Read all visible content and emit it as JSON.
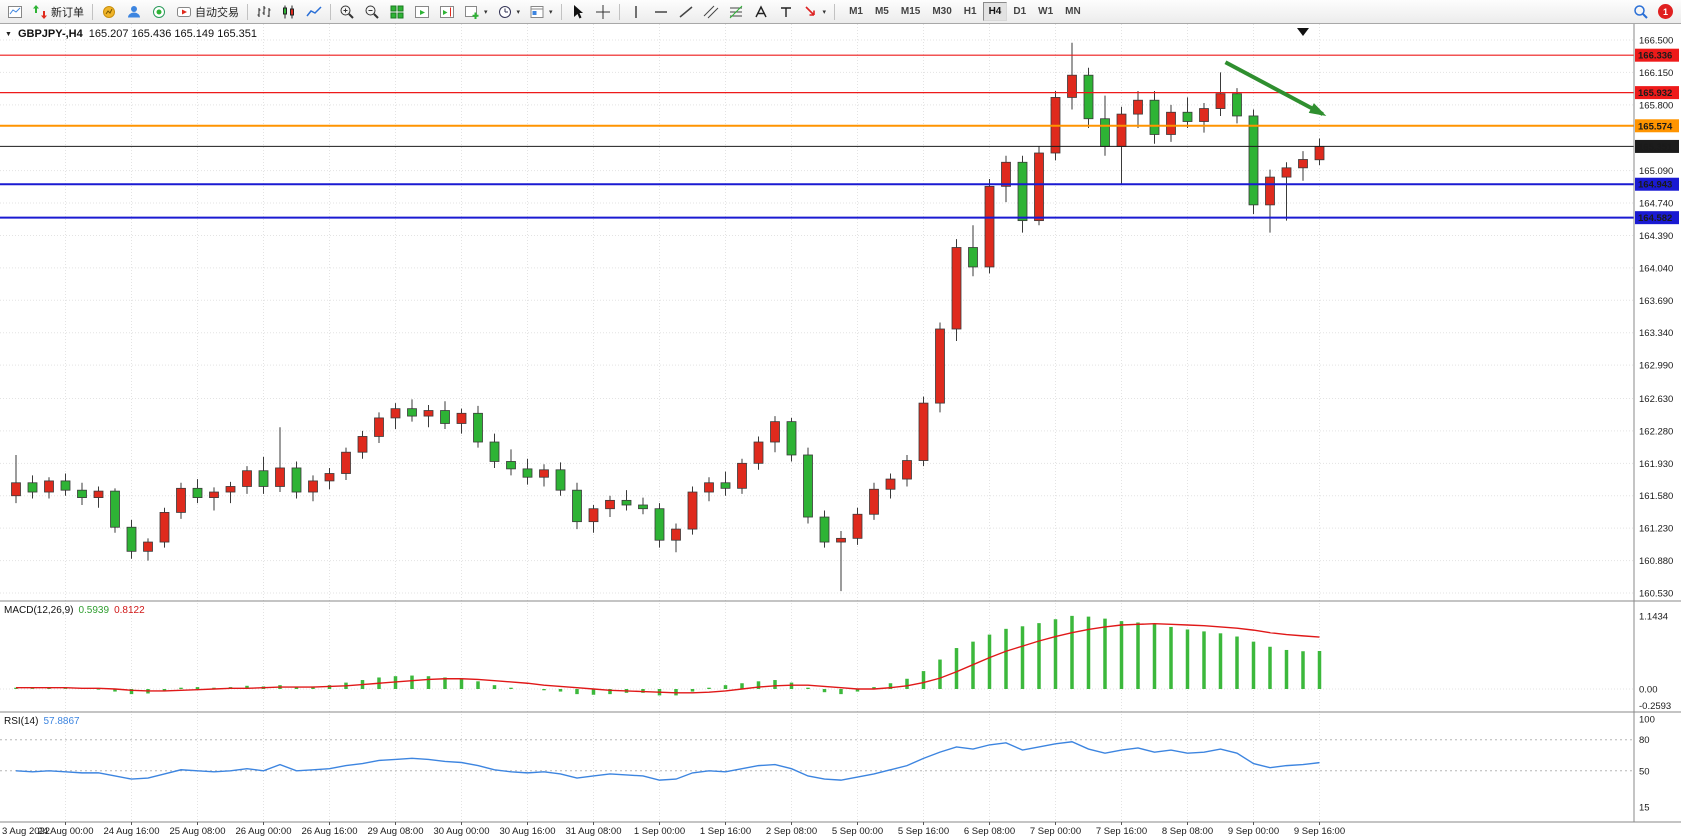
{
  "icons": {
    "collapse_triangle": "▼",
    "caret": "▾"
  },
  "toolbar": {
    "new_order_label": "新订单",
    "autotrading_label": "自动交易",
    "timeframes": [
      "M1",
      "M5",
      "M15",
      "M30",
      "H1",
      "H4",
      "D1",
      "W1",
      "MN"
    ],
    "active_timeframe": "H4",
    "notification_count": "1"
  },
  "chart": {
    "title_symbol": "GBPJPY-,H4",
    "title_ohlc": "165.207 165.436 165.149 165.351",
    "macd_name": "MACD(12,26,9)",
    "macd_value_main": "0.5939",
    "macd_value_signal": "0.8122",
    "rsi_name": "RSI(14)",
    "rsi_value": "57.8867"
  },
  "theme": {
    "grid": "#e3e3e3",
    "axis_text": "#1a1a1a",
    "panel_border": "#8a8a8a"
  },
  "chart_data": {
    "type": "candlestick",
    "symbol": "GBPJPY-",
    "timeframe": "H4",
    "price_convention": "red=bullish, green=bearish",
    "ylim": [
      160.44,
      166.67
    ],
    "colors": {
      "bull": "#df2a1d",
      "bear": "#2eb335",
      "wick": "#3a3a3a"
    },
    "candles": [
      [
        161.58,
        162.02,
        161.5,
        161.72
      ],
      [
        161.72,
        161.8,
        161.55,
        161.62
      ],
      [
        161.62,
        161.78,
        161.55,
        161.74
      ],
      [
        161.74,
        161.82,
        161.58,
        161.64
      ],
      [
        161.64,
        161.72,
        161.48,
        161.56
      ],
      [
        161.56,
        161.68,
        161.45,
        161.63
      ],
      [
        161.63,
        161.66,
        161.18,
        161.24
      ],
      [
        161.24,
        161.32,
        160.9,
        160.98
      ],
      [
        160.98,
        161.12,
        160.88,
        161.08
      ],
      [
        161.08,
        161.45,
        161.02,
        161.4
      ],
      [
        161.4,
        161.72,
        161.33,
        161.66
      ],
      [
        161.66,
        161.76,
        161.5,
        161.56
      ],
      [
        161.56,
        161.67,
        161.42,
        161.62
      ],
      [
        161.62,
        161.73,
        161.5,
        161.68
      ],
      [
        161.68,
        161.9,
        161.6,
        161.85
      ],
      [
        161.85,
        162.0,
        161.6,
        161.68
      ],
      [
        161.68,
        162.32,
        161.62,
        161.88
      ],
      [
        161.88,
        161.95,
        161.55,
        161.62
      ],
      [
        161.62,
        161.8,
        161.52,
        161.74
      ],
      [
        161.74,
        161.88,
        161.65,
        161.82
      ],
      [
        161.82,
        162.1,
        161.75,
        162.05
      ],
      [
        162.05,
        162.28,
        161.98,
        162.22
      ],
      [
        162.22,
        162.48,
        162.15,
        162.42
      ],
      [
        162.42,
        162.58,
        162.3,
        162.52
      ],
      [
        162.52,
        162.62,
        162.38,
        162.44
      ],
      [
        162.44,
        162.56,
        162.32,
        162.5
      ],
      [
        162.5,
        162.6,
        162.3,
        162.36
      ],
      [
        162.36,
        162.52,
        162.25,
        162.47
      ],
      [
        162.47,
        162.55,
        162.1,
        162.16
      ],
      [
        162.16,
        162.25,
        161.88,
        161.95
      ],
      [
        161.95,
        162.08,
        161.8,
        161.87
      ],
      [
        161.87,
        161.98,
        161.7,
        161.78
      ],
      [
        161.78,
        161.92,
        161.68,
        161.86
      ],
      [
        161.86,
        161.94,
        161.58,
        161.64
      ],
      [
        161.64,
        161.72,
        161.22,
        161.3
      ],
      [
        161.3,
        161.48,
        161.18,
        161.44
      ],
      [
        161.44,
        161.58,
        161.35,
        161.53
      ],
      [
        161.53,
        161.64,
        161.42,
        161.48
      ],
      [
        161.48,
        161.56,
        161.38,
        161.44
      ],
      [
        161.44,
        161.5,
        161.02,
        161.1
      ],
      [
        161.1,
        161.28,
        160.97,
        161.22
      ],
      [
        161.22,
        161.68,
        161.16,
        161.62
      ],
      [
        161.62,
        161.78,
        161.52,
        161.72
      ],
      [
        161.72,
        161.84,
        161.58,
        161.66
      ],
      [
        161.66,
        161.98,
        161.6,
        161.93
      ],
      [
        161.93,
        162.22,
        161.86,
        162.16
      ],
      [
        162.16,
        162.44,
        162.05,
        162.38
      ],
      [
        162.38,
        162.42,
        161.95,
        162.02
      ],
      [
        162.02,
        162.1,
        161.28,
        161.35
      ],
      [
        161.35,
        161.42,
        161.02,
        161.08
      ],
      [
        161.08,
        161.2,
        160.55,
        161.12
      ],
      [
        161.12,
        161.45,
        161.05,
        161.38
      ],
      [
        161.38,
        161.72,
        161.32,
        161.65
      ],
      [
        161.65,
        161.82,
        161.55,
        161.76
      ],
      [
        161.76,
        162.02,
        161.68,
        161.96
      ],
      [
        161.96,
        162.65,
        161.9,
        162.58
      ],
      [
        162.58,
        163.45,
        162.48,
        163.38
      ],
      [
        163.38,
        164.35,
        163.25,
        164.26
      ],
      [
        164.26,
        164.5,
        163.95,
        164.05
      ],
      [
        164.05,
        165.0,
        163.98,
        164.92
      ],
      [
        164.92,
        165.25,
        164.75,
        165.18
      ],
      [
        165.18,
        165.25,
        164.42,
        164.55
      ],
      [
        164.55,
        165.35,
        164.5,
        165.28
      ],
      [
        165.28,
        165.95,
        165.2,
        165.88
      ],
      [
        165.88,
        166.47,
        165.75,
        166.12
      ],
      [
        166.12,
        166.2,
        165.55,
        165.65
      ],
      [
        165.65,
        165.9,
        165.25,
        165.35
      ],
      [
        165.35,
        165.78,
        164.95,
        165.7
      ],
      [
        165.7,
        165.95,
        165.55,
        165.85
      ],
      [
        165.85,
        165.95,
        165.38,
        165.48
      ],
      [
        165.48,
        165.8,
        165.4,
        165.72
      ],
      [
        165.72,
        165.88,
        165.55,
        165.62
      ],
      [
        165.62,
        165.82,
        165.5,
        165.76
      ],
      [
        165.76,
        166.15,
        165.68,
        165.92
      ],
      [
        165.92,
        165.98,
        165.6,
        165.68
      ],
      [
        165.68,
        165.75,
        164.62,
        164.72
      ],
      [
        164.72,
        165.1,
        164.42,
        165.02
      ],
      [
        165.02,
        165.18,
        164.55,
        165.12
      ],
      [
        165.12,
        165.3,
        164.98,
        165.21
      ],
      [
        165.207,
        165.436,
        165.149,
        165.351
      ]
    ],
    "x_axis": {
      "edge_label": "3 Aug 2022",
      "first_tick_candle": 3,
      "tick_step": 4,
      "tick_labels": [
        "24 Aug 00:00",
        "24 Aug 16:00",
        "25 Aug 08:00",
        "26 Aug 00:00",
        "26 Aug 16:00",
        "29 Aug 08:00",
        "30 Aug 00:00",
        "30 Aug 16:00",
        "31 Aug 08:00",
        "1 Sep 00:00",
        "1 Sep 16:00",
        "2 Sep 08:00",
        "5 Sep 00:00",
        "5 Sep 16:00",
        "6 Sep 08:00",
        "7 Sep 00:00",
        "7 Sep 16:00",
        "8 Sep 08:00",
        "9 Sep 00:00",
        "9 Sep 16:00"
      ]
    },
    "y_axis": {
      "labels": [
        "166.500",
        "166.150",
        "165.800",
        "165.090",
        "164.740",
        "164.390",
        "164.040",
        "163.690",
        "163.340",
        "162.990",
        "162.630",
        "162.280",
        "161.930",
        "161.580",
        "161.230",
        "160.880",
        "160.530"
      ]
    },
    "hlines": [
      {
        "label": "166.336",
        "color": "#ee1a1a",
        "width": 1.2,
        "name": "resistance-line-1"
      },
      {
        "label": "165.932",
        "color": "#ee1a1a",
        "width": 1.2,
        "name": "resistance-line-2"
      },
      {
        "label": "165.574",
        "color": "#ff9400",
        "width": 2,
        "name": "pivot-line-orange"
      },
      {
        "label": "165.351",
        "color": "#1c1c1c",
        "width": 1,
        "name": "current-price-line"
      },
      {
        "label": "164.943",
        "color": "#1a1ad2",
        "width": 2,
        "name": "support-line-1"
      },
      {
        "label": "164.582",
        "color": "#1a1ad2",
        "width": 2,
        "name": "support-line-2"
      }
    ],
    "current_price": "165.351",
    "arrow": {
      "color": "#2f8f2f",
      "x1_candle": 73.3,
      "p1": 166.26,
      "x2_candle": 79.2,
      "p2": 165.7
    },
    "macd": {
      "params": "12,26,9",
      "axis_labels": [
        "1.1434",
        "0.00",
        "-0.2593"
      ],
      "colors": {
        "histogram": "#3cb83c",
        "signal": "#e01818"
      },
      "histogram": [
        0.02,
        0.01,
        0.02,
        0.01,
        0.0,
        -0.01,
        -0.04,
        -0.08,
        -0.07,
        -0.03,
        0.02,
        0.03,
        0.02,
        0.03,
        0.05,
        0.04,
        0.06,
        0.03,
        0.04,
        0.06,
        0.1,
        0.14,
        0.18,
        0.2,
        0.21,
        0.2,
        0.18,
        0.16,
        0.12,
        0.06,
        0.02,
        0.0,
        -0.02,
        -0.04,
        -0.08,
        -0.09,
        -0.08,
        -0.06,
        -0.06,
        -0.1,
        -0.1,
        -0.04,
        0.02,
        0.06,
        0.09,
        0.12,
        0.14,
        0.1,
        0.02,
        -0.05,
        -0.08,
        -0.04,
        0.03,
        0.09,
        0.16,
        0.28,
        0.46,
        0.64,
        0.74,
        0.85,
        0.94,
        0.98,
        1.03,
        1.09,
        1.1434,
        1.13,
        1.1,
        1.06,
        1.04,
        1.01,
        0.97,
        0.93,
        0.9,
        0.87,
        0.82,
        0.74,
        0.66,
        0.61,
        0.59,
        0.5939
      ],
      "signal": [
        0.02,
        0.02,
        0.02,
        0.02,
        0.01,
        0.01,
        0.0,
        -0.02,
        -0.03,
        -0.03,
        -0.02,
        -0.01,
        0.0,
        0.01,
        0.01,
        0.02,
        0.03,
        0.03,
        0.03,
        0.04,
        0.05,
        0.07,
        0.09,
        0.11,
        0.13,
        0.15,
        0.16,
        0.16,
        0.15,
        0.13,
        0.11,
        0.09,
        0.06,
        0.04,
        0.02,
        0.0,
        -0.02,
        -0.03,
        -0.04,
        -0.05,
        -0.06,
        -0.06,
        -0.05,
        -0.03,
        0.0,
        0.03,
        0.05,
        0.06,
        0.06,
        0.04,
        0.02,
        0.0,
        0.0,
        0.02,
        0.05,
        0.1,
        0.17,
        0.27,
        0.38,
        0.49,
        0.59,
        0.67,
        0.75,
        0.82,
        0.88,
        0.93,
        0.97,
        1.0,
        1.01,
        1.02,
        1.01,
        1.0,
        0.99,
        0.97,
        0.95,
        0.92,
        0.88,
        0.85,
        0.83,
        0.8122
      ]
    },
    "rsi": {
      "period": 14,
      "axis_labels": [
        "100",
        "80",
        "50",
        "15"
      ],
      "levels": [
        80,
        50
      ],
      "color": "#3d85e0",
      "values": [
        50,
        49,
        50,
        49,
        48,
        48,
        45,
        42,
        43,
        47,
        51,
        50,
        49,
        50,
        52,
        50,
        56,
        50,
        51,
        52,
        55,
        57,
        60,
        61,
        62,
        61,
        59,
        58,
        55,
        51,
        49,
        48,
        49,
        47,
        43,
        45,
        47,
        46,
        45,
        41,
        42,
        48,
        50,
        49,
        52,
        55,
        56,
        52,
        45,
        42,
        41,
        44,
        47,
        51,
        55,
        62,
        68,
        73,
        71,
        75,
        77,
        70,
        73,
        76,
        78,
        71,
        67,
        70,
        72,
        68,
        70,
        67,
        68,
        71,
        67,
        57,
        53,
        55,
        56,
        57.89
      ]
    }
  }
}
